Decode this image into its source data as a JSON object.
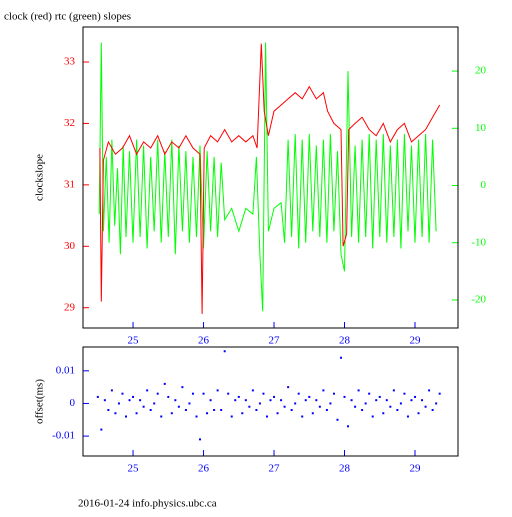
{
  "chart_data": [
    {
      "type": "line",
      "title": "clock (red) rtc (green) slopes",
      "ylabel": "clockslope",
      "xlim": [
        24.29,
        29.61
      ],
      "xticks": [
        25,
        26,
        27,
        28,
        29
      ],
      "ylim": [
        28.67,
        33.57
      ],
      "yticks": [
        29,
        30,
        31,
        32,
        33
      ],
      "y2lim": [
        -24.9,
        27.7
      ],
      "y2ticks": [
        -20,
        -10,
        0,
        10,
        20
      ],
      "series": [
        {
          "color": "#ff0000",
          "x": [
            24.53,
            24.55,
            24.58,
            24.65,
            24.75,
            24.85,
            24.95,
            25.05,
            25.15,
            25.25,
            25.35,
            25.45,
            25.55,
            25.65,
            25.75,
            25.85,
            25.95,
            25.98,
            26.01,
            26.1,
            26.2,
            26.3,
            26.4,
            26.5,
            26.6,
            26.7,
            26.76,
            26.82,
            26.86,
            26.92,
            27.0,
            27.1,
            27.2,
            27.3,
            27.4,
            27.5,
            27.6,
            27.7,
            27.76,
            27.85,
            27.95,
            27.98,
            28.03,
            28.06,
            28.15,
            28.25,
            28.35,
            28.45,
            28.55,
            28.65,
            28.75,
            28.85,
            28.95,
            29.05,
            29.15,
            29.25,
            29.35
          ],
          "values": [
            31.6,
            29.1,
            31.4,
            31.7,
            31.5,
            31.6,
            31.8,
            31.5,
            31.7,
            31.6,
            31.8,
            31.5,
            31.7,
            31.6,
            31.8,
            31.6,
            31.5,
            28.9,
            31.6,
            31.8,
            31.7,
            31.9,
            31.7,
            31.8,
            31.7,
            31.8,
            31.6,
            33.3,
            32.2,
            31.8,
            32.2,
            32.3,
            32.4,
            32.5,
            32.4,
            32.6,
            32.4,
            32.5,
            32.2,
            32.0,
            31.9,
            30.0,
            30.2,
            31.9,
            32.0,
            32.1,
            31.9,
            31.8,
            32.0,
            31.7,
            31.9,
            32.0,
            31.7,
            31.8,
            31.9,
            32.1,
            32.3
          ]
        },
        {
          "color": "#00ff00",
          "axis": "y2",
          "x": [
            24.52,
            24.55,
            24.58,
            24.62,
            24.66,
            24.7,
            24.74,
            24.78,
            24.82,
            24.86,
            24.9,
            24.95,
            25.0,
            25.05,
            25.1,
            25.15,
            25.2,
            25.25,
            25.3,
            25.35,
            25.4,
            25.45,
            25.5,
            25.55,
            25.6,
            25.65,
            25.7,
            25.75,
            25.8,
            25.85,
            25.9,
            25.95,
            26.0,
            26.05,
            26.1,
            26.15,
            26.2,
            26.25,
            26.3,
            26.4,
            26.5,
            26.6,
            26.7,
            26.75,
            26.8,
            26.84,
            26.88,
            26.92,
            27.0,
            27.1,
            27.15,
            27.2,
            27.25,
            27.3,
            27.35,
            27.4,
            27.45,
            27.5,
            27.55,
            27.6,
            27.65,
            27.7,
            27.75,
            27.8,
            27.85,
            27.9,
            27.95,
            28.0,
            28.05,
            28.1,
            28.15,
            28.2,
            28.25,
            28.3,
            28.35,
            28.4,
            28.45,
            28.5,
            28.55,
            28.6,
            28.65,
            28.7,
            28.75,
            28.8,
            28.85,
            28.9,
            28.95,
            29.0,
            29.05,
            29.1,
            29.15,
            29.2,
            29.25,
            29.3
          ],
          "values": [
            -5,
            25,
            -8,
            5,
            -10,
            8,
            -7,
            3,
            -12,
            7,
            -9,
            6,
            -10,
            8,
            -9,
            7,
            -11,
            5,
            -8,
            8,
            -10,
            6,
            -9,
            8,
            -12,
            7,
            -8,
            6,
            -10,
            5,
            -9,
            7,
            -11,
            6,
            -8,
            5,
            -9,
            4,
            -6,
            -4,
            -8,
            -4,
            -5,
            5,
            -12,
            -22,
            25,
            -8,
            -4,
            -3,
            -10,
            8,
            -9,
            9,
            -11,
            8,
            -10,
            9,
            -8,
            7,
            -9,
            8,
            -10,
            9,
            -8,
            6,
            -12,
            -15,
            20,
            -9,
            7,
            -10,
            8,
            -9,
            9,
            -11,
            8,
            -9,
            9,
            -10,
            7,
            -9,
            8,
            -11,
            9,
            -8,
            7,
            -10,
            8,
            -9,
            9,
            -10,
            8,
            -8
          ]
        }
      ]
    },
    {
      "type": "scatter",
      "ylabel": "offset(ms)",
      "color": "#0000ff",
      "xlim": [
        24.29,
        29.61
      ],
      "xticks": [
        25,
        26,
        27,
        28,
        29
      ],
      "ylim": [
        -0.0161,
        0.0173
      ],
      "yticks": [
        -0.01,
        0,
        0.01
      ],
      "x": [
        24.5,
        24.55,
        24.6,
        24.65,
        24.7,
        24.75,
        24.8,
        24.85,
        24.9,
        24.95,
        25.0,
        25.05,
        25.1,
        25.15,
        25.2,
        25.25,
        25.3,
        25.35,
        25.4,
        25.45,
        25.5,
        25.55,
        25.6,
        25.65,
        25.7,
        25.75,
        25.8,
        25.85,
        25.9,
        25.95,
        26.0,
        26.05,
        26.1,
        26.15,
        26.2,
        26.25,
        26.3,
        26.35,
        26.4,
        26.45,
        26.5,
        26.55,
        26.6,
        26.65,
        26.7,
        26.75,
        26.8,
        26.85,
        26.9,
        26.95,
        27.0,
        27.05,
        27.1,
        27.15,
        27.2,
        27.25,
        27.3,
        27.35,
        27.4,
        27.45,
        27.5,
        27.55,
        27.6,
        27.65,
        27.7,
        27.75,
        27.8,
        27.85,
        27.9,
        27.95,
        28.0,
        28.05,
        28.1,
        28.15,
        28.2,
        28.25,
        28.3,
        28.35,
        28.4,
        28.45,
        28.5,
        28.55,
        28.6,
        28.65,
        28.7,
        28.75,
        28.8,
        28.85,
        28.9,
        28.95,
        29.0,
        29.05,
        29.1,
        29.15,
        29.2,
        29.25,
        29.3,
        29.35
      ],
      "values": [
        0.002,
        -0.008,
        0.001,
        -0.002,
        0.004,
        -0.003,
        0.0,
        0.003,
        -0.004,
        0.001,
        0.002,
        -0.003,
        0.001,
        -0.001,
        0.004,
        -0.002,
        0.0,
        0.003,
        -0.004,
        0.006,
        0.002,
        -0.003,
        0.001,
        -0.001,
        0.005,
        -0.002,
        0.0,
        0.003,
        -0.004,
        -0.011,
        0.003,
        -0.003,
        0.001,
        -0.002,
        0.004,
        -0.002,
        0.016,
        0.003,
        -0.004,
        0.001,
        0.002,
        -0.003,
        0.001,
        -0.001,
        0.004,
        -0.002,
        0.0,
        0.003,
        -0.004,
        0.001,
        0.002,
        -0.003,
        0.001,
        -0.001,
        0.005,
        -0.002,
        0.0,
        0.003,
        -0.004,
        0.001,
        0.002,
        -0.003,
        0.001,
        -0.001,
        0.004,
        -0.002,
        0.0,
        0.003,
        -0.005,
        0.014,
        0.002,
        -0.007,
        0.001,
        -0.001,
        0.004,
        -0.002,
        0.0,
        0.003,
        -0.004,
        0.001,
        0.002,
        -0.003,
        0.001,
        -0.001,
        0.004,
        -0.002,
        0.0,
        0.003,
        -0.004,
        0.001,
        0.002,
        -0.003,
        0.001,
        -0.001,
        0.004,
        -0.002,
        0.0,
        0.003
      ]
    }
  ],
  "footer": "2016-01-24 info.physics.ubc.ca"
}
